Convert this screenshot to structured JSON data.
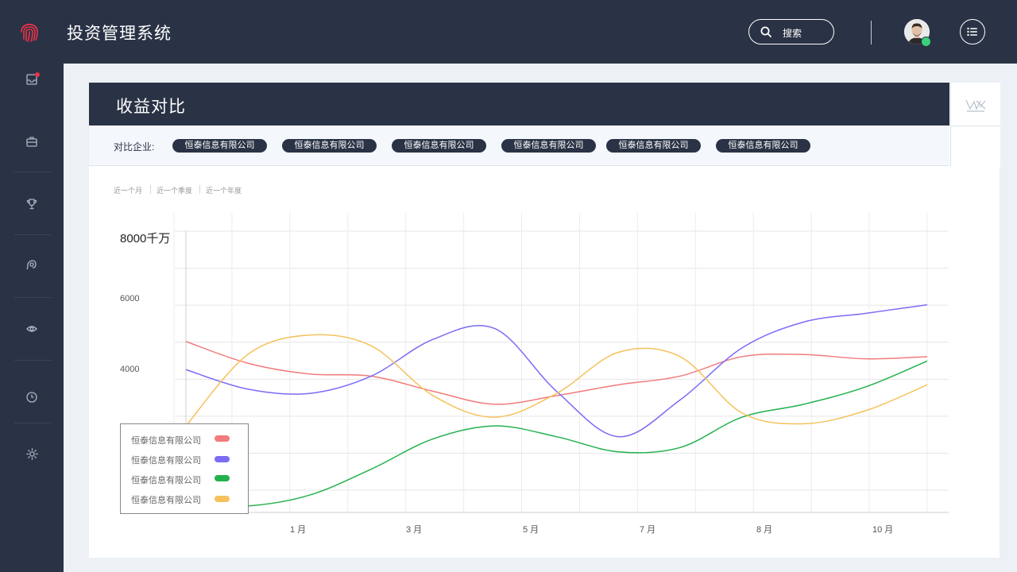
{
  "app": {
    "title": "投资管理系统"
  },
  "header": {
    "search_label": "搜索"
  },
  "sidebar": {
    "items": [
      {
        "icon": "inbox-icon"
      },
      {
        "icon": "briefcase-icon"
      },
      {
        "icon": "trophy-icon"
      },
      {
        "icon": "target-icon"
      },
      {
        "icon": "eye-icon"
      },
      {
        "icon": "clock-icon"
      },
      {
        "icon": "gear-icon"
      }
    ]
  },
  "panel": {
    "title": "收益对比",
    "filter_label": "对比企业:",
    "chips": [
      "恒泰信息有限公司",
      "恒泰信息有限公司",
      "恒泰信息有限公司",
      "恒泰信息有限公司",
      "恒泰信息有限公司",
      "恒泰信息有限公司"
    ],
    "periods": [
      "近一个月",
      "近一个季度",
      "近一个年度"
    ]
  },
  "colors": {
    "navy": "#2a3245",
    "red": "#f27b7b",
    "purple": "#7b6cf6",
    "green": "#23b14d",
    "yellow": "#f5c25c"
  },
  "chart_data": {
    "type": "line",
    "y_unit_label": "8000千万",
    "y_ticks": [
      "6000",
      "4000"
    ],
    "x_tick_labels": [
      "1 月",
      "3 月",
      "5 月",
      "7 月",
      "8 月",
      "10 月"
    ],
    "x": [
      0,
      1,
      2,
      3,
      4,
      5,
      6,
      7,
      8,
      9,
      10,
      11,
      12
    ],
    "ylim": [
      1500,
      8000
    ],
    "series": [
      {
        "name": "恒泰信息有限公司",
        "color": "#f27b7b",
        "values": [
          5450,
          4950,
          4700,
          4650,
          4300,
          4000,
          4200,
          4450,
          4650,
          5100,
          5150,
          5050,
          5100
        ]
      },
      {
        "name": "恒泰信息有限公司",
        "color": "#7b6cf6",
        "values": [
          4800,
          4350,
          4250,
          4650,
          5500,
          5750,
          4300,
          3250,
          4100,
          5300,
          5900,
          6100,
          6300
        ]
      },
      {
        "name": "恒泰信息有限公司",
        "color": "#23b14d",
        "values": [
          1700,
          1650,
          1900,
          2500,
          3200,
          3500,
          3250,
          2900,
          3000,
          3700,
          4000,
          4400,
          5000
        ]
      },
      {
        "name": "恒泰信息有限公司",
        "color": "#f5c25c",
        "values": [
          3500,
          5150,
          5600,
          5350,
          4200,
          3700,
          4250,
          5200,
          5100,
          3800,
          3550,
          3850,
          4450
        ]
      }
    ],
    "legend_position": "bottom-left",
    "grid": true
  }
}
